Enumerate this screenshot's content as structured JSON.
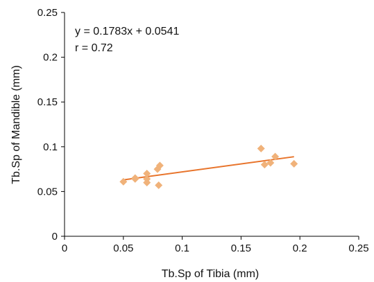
{
  "chart_data": {
    "type": "scatter",
    "xlabel": "Tb.Sp of Tibia (mm)",
    "ylabel": "Tb.Sp of Mandible (mm)",
    "xlim": [
      0,
      0.25
    ],
    "ylim": [
      0,
      0.25
    ],
    "xticks": [
      0,
      0.05,
      0.1,
      0.15,
      0.2,
      0.25
    ],
    "yticks": [
      0,
      0.05,
      0.1,
      0.15,
      0.2,
      0.25
    ],
    "xtick_labels": [
      "0",
      "0.05",
      "0.1",
      "0.15",
      "0.2",
      "0.25"
    ],
    "ytick_labels": [
      "0",
      "0.05",
      "0.1",
      "0.15",
      "0.2",
      "0.25"
    ],
    "grid": false,
    "marker": "diamond",
    "marker_color": "#f0b27a",
    "line_color": "#e8742b",
    "points": [
      {
        "x": 0.05,
        "y": 0.061
      },
      {
        "x": 0.06,
        "y": 0.064
      },
      {
        "x": 0.06,
        "y": 0.065
      },
      {
        "x": 0.07,
        "y": 0.07
      },
      {
        "x": 0.07,
        "y": 0.064
      },
      {
        "x": 0.07,
        "y": 0.06
      },
      {
        "x": 0.079,
        "y": 0.075
      },
      {
        "x": 0.081,
        "y": 0.079
      },
      {
        "x": 0.08,
        "y": 0.057
      },
      {
        "x": 0.167,
        "y": 0.098
      },
      {
        "x": 0.17,
        "y": 0.08
      },
      {
        "x": 0.175,
        "y": 0.082
      },
      {
        "x": 0.179,
        "y": 0.089
      },
      {
        "x": 0.195,
        "y": 0.081
      }
    ],
    "trendline": {
      "slope": 0.1783,
      "intercept": 0.0541,
      "x_range": [
        0.05,
        0.195
      ]
    },
    "annotations": [
      "y = 0.1783x + 0.0541",
      "r = 0.72"
    ]
  }
}
